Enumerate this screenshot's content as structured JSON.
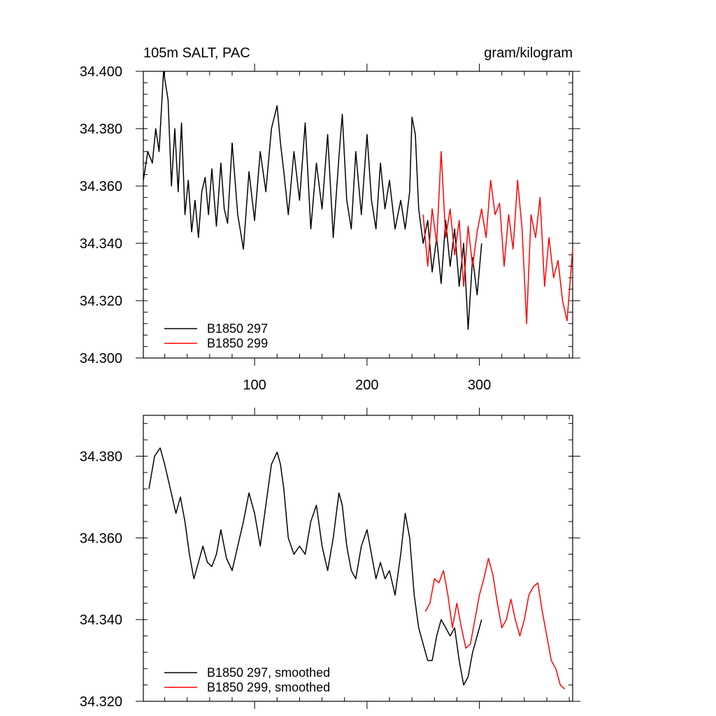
{
  "chart_data": [
    {
      "type": "line",
      "title_left": "105m SALT, PAC",
      "title_right": "gram/kilogram",
      "xlabel": "",
      "ylabel": "",
      "xlim": [
        1,
        383
      ],
      "ylim": [
        34.3,
        34.4
      ],
      "xticks": [
        100,
        200,
        300
      ],
      "xtick_labels": [
        "100",
        "200",
        "300"
      ],
      "yticks": [
        34.3,
        34.32,
        34.34,
        34.36,
        34.38,
        34.4
      ],
      "ytick_labels": [
        "34.300",
        "34.320",
        "34.340",
        "34.360",
        "34.380",
        "34.400"
      ],
      "grid": false,
      "legend_position": "bottom-left",
      "series": [
        {
          "name": "B1850 297",
          "color": "#000000",
          "x": [
            1,
            5,
            9,
            12,
            15,
            19,
            23,
            26,
            29,
            32,
            35,
            38,
            41,
            44,
            47,
            50,
            53,
            56,
            59,
            62,
            66,
            70,
            73,
            76,
            80,
            85,
            90,
            95,
            100,
            105,
            110,
            115,
            120,
            123,
            126,
            130,
            135,
            140,
            145,
            150,
            155,
            160,
            165,
            170,
            175,
            178,
            182,
            186,
            190,
            195,
            200,
            204,
            208,
            212,
            216,
            220,
            225,
            230,
            234,
            238,
            240,
            243,
            246,
            250,
            254,
            258,
            262,
            266,
            270,
            274,
            278,
            282,
            286,
            290,
            294,
            298,
            302
          ],
          "values": [
            34.362,
            34.372,
            34.368,
            34.38,
            34.372,
            34.4,
            34.39,
            34.36,
            34.38,
            34.358,
            34.382,
            34.35,
            34.362,
            34.344,
            34.355,
            34.342,
            34.358,
            34.363,
            34.35,
            34.366,
            34.346,
            34.368,
            34.352,
            34.347,
            34.375,
            34.35,
            34.338,
            34.365,
            34.348,
            34.372,
            34.358,
            34.38,
            34.388,
            34.375,
            34.365,
            34.35,
            34.372,
            34.355,
            34.382,
            34.345,
            34.368,
            34.352,
            34.378,
            34.342,
            34.37,
            34.385,
            34.355,
            34.345,
            34.372,
            34.35,
            34.378,
            34.355,
            34.345,
            34.368,
            34.352,
            34.362,
            34.345,
            34.355,
            34.345,
            34.358,
            34.384,
            34.378,
            34.352,
            34.34,
            34.348,
            34.33,
            34.342,
            34.326,
            34.348,
            34.332,
            34.345,
            34.325,
            34.34,
            34.31,
            34.335,
            34.322,
            34.34
          ]
        },
        {
          "name": "B1850 299",
          "color": "#ff0000",
          "x": [
            250,
            254,
            258,
            262,
            266,
            270,
            274,
            278,
            282,
            286,
            290,
            294,
            298,
            302,
            306,
            310,
            314,
            318,
            322,
            326,
            330,
            334,
            338,
            342,
            346,
            350,
            354,
            358,
            362,
            366,
            370,
            374,
            378,
            383
          ],
          "values": [
            34.35,
            34.332,
            34.352,
            34.34,
            34.372,
            34.342,
            34.352,
            34.336,
            34.348,
            34.325,
            34.346,
            34.332,
            34.344,
            34.352,
            34.342,
            34.362,
            34.35,
            34.354,
            34.332,
            34.35,
            34.338,
            34.362,
            34.345,
            34.312,
            34.35,
            34.342,
            34.356,
            34.325,
            34.342,
            34.328,
            34.334,
            34.32,
            34.313,
            34.338
          ]
        }
      ]
    },
    {
      "type": "line",
      "xlabel": "",
      "ylabel": "",
      "xlim": [
        1,
        383
      ],
      "ylim": [
        34.32,
        34.39
      ],
      "xticks": [
        100,
        200,
        300
      ],
      "yticks": [
        34.32,
        34.34,
        34.36,
        34.38
      ],
      "ytick_labels": [
        "34.320",
        "34.340",
        "34.360",
        "34.380"
      ],
      "grid": false,
      "legend_position": "bottom-left",
      "series": [
        {
          "name": "B1850 297, smoothed",
          "color": "#000000",
          "x": [
            6,
            11,
            16,
            20,
            25,
            30,
            34,
            38,
            42,
            46,
            50,
            54,
            58,
            62,
            66,
            70,
            75,
            80,
            85,
            90,
            95,
            100,
            105,
            110,
            115,
            120,
            123,
            126,
            130,
            135,
            140,
            145,
            150,
            155,
            160,
            165,
            170,
            175,
            178,
            182,
            186,
            190,
            195,
            200,
            204,
            208,
            212,
            216,
            220,
            225,
            230,
            234,
            238,
            242,
            246,
            250,
            254,
            258,
            262,
            266,
            270,
            274,
            278,
            282,
            286,
            290,
            294,
            298,
            302
          ],
          "values": [
            34.372,
            34.38,
            34.382,
            34.378,
            34.372,
            34.366,
            34.37,
            34.364,
            34.356,
            34.35,
            34.354,
            34.358,
            34.354,
            34.353,
            34.356,
            34.362,
            34.355,
            34.352,
            34.358,
            34.364,
            34.371,
            34.366,
            34.358,
            34.368,
            34.378,
            34.381,
            34.378,
            34.372,
            34.36,
            34.356,
            34.358,
            34.356,
            34.364,
            34.368,
            34.358,
            34.352,
            34.36,
            34.371,
            34.368,
            34.358,
            34.352,
            34.35,
            34.358,
            34.362,
            34.356,
            34.35,
            34.354,
            34.35,
            34.352,
            34.346,
            34.356,
            34.366,
            34.36,
            34.346,
            34.338,
            34.334,
            34.33,
            34.33,
            34.336,
            34.34,
            34.338,
            34.336,
            34.338,
            34.33,
            34.324,
            34.326,
            34.332,
            34.336,
            34.34
          ]
        },
        {
          "name": "B1850 299, smoothed",
          "color": "#ff0000",
          "x": [
            252,
            256,
            260,
            264,
            268,
            272,
            276,
            280,
            284,
            288,
            292,
            296,
            300,
            304,
            308,
            312,
            316,
            320,
            324,
            328,
            332,
            336,
            340,
            344,
            348,
            352,
            356,
            360,
            364,
            368,
            372,
            376
          ],
          "values": [
            34.342,
            34.344,
            34.35,
            34.349,
            34.352,
            34.346,
            34.338,
            34.344,
            34.338,
            34.333,
            34.334,
            34.34,
            34.346,
            34.35,
            34.355,
            34.351,
            34.344,
            34.338,
            34.34,
            34.345,
            34.34,
            34.336,
            34.34,
            34.346,
            34.348,
            34.349,
            34.342,
            34.336,
            34.33,
            34.328,
            34.324,
            34.323
          ]
        }
      ]
    }
  ]
}
